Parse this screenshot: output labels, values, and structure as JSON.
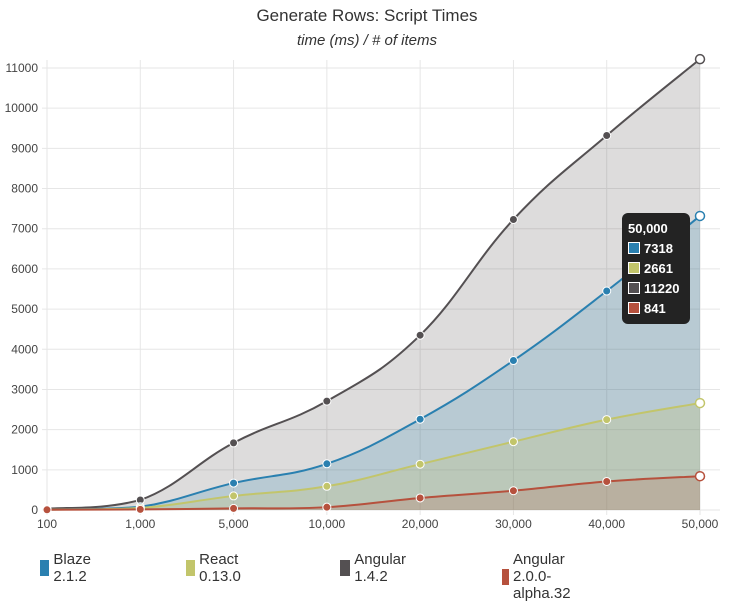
{
  "chart_data": {
    "type": "line",
    "title": "Generate Rows: Script Times",
    "subtitle": "time (ms) / # of items",
    "xlabel": "",
    "ylabel": "",
    "ylim": [
      0,
      11000
    ],
    "categories": [
      "100",
      "1,000",
      "5,000",
      "10,000",
      "20,000",
      "30,000",
      "40,000",
      "50,000"
    ],
    "y_ticks": [
      "0",
      "1000",
      "2000",
      "3000",
      "4000",
      "5000",
      "6000",
      "7000",
      "8000",
      "9000",
      "10000",
      "11000"
    ],
    "grid": true,
    "legend_position": "bottom",
    "series": [
      {
        "name": "Angular 1.4.2",
        "color": "#545052",
        "fill": "rgba(84,80,82,0.2)",
        "values": [
          30,
          250,
          1670,
          2710,
          4350,
          7230,
          9320,
          11220
        ]
      },
      {
        "name": "Blaze 2.1.2",
        "color": "#2a80b0",
        "fill": "rgba(42,128,176,0.2)",
        "values": [
          10,
          80,
          670,
          1150,
          2260,
          3720,
          5450,
          7318
        ]
      },
      {
        "name": "React 0.13.0",
        "color": "#c2c56b",
        "fill": "rgba(194,197,107,0.25)",
        "values": [
          10,
          50,
          350,
          590,
          1140,
          1700,
          2250,
          2661
        ]
      },
      {
        "name": "Angular 2.0.0-alpha.32",
        "color": "#b6513d",
        "fill": "rgba(182,81,61,0.2)",
        "values": [
          5,
          15,
          40,
          70,
          300,
          480,
          710,
          841
        ]
      }
    ],
    "tooltip": {
      "title": "50,000",
      "rows": [
        {
          "value": "7318",
          "color": "#2a80b0"
        },
        {
          "value": "2661",
          "color": "#c2c56b"
        },
        {
          "value": "11220",
          "color": "#545052"
        },
        {
          "value": "841",
          "color": "#b6513d"
        }
      ]
    }
  },
  "legend": [
    {
      "label": "Blaze 2.1.2",
      "color": "#2a80b0"
    },
    {
      "label": "React 0.13.0",
      "color": "#c2c56b"
    },
    {
      "label": "Angular 1.4.2",
      "color": "#545052"
    },
    {
      "label": "Angular 2.0.0-alpha.32",
      "color": "#b6513d"
    }
  ]
}
